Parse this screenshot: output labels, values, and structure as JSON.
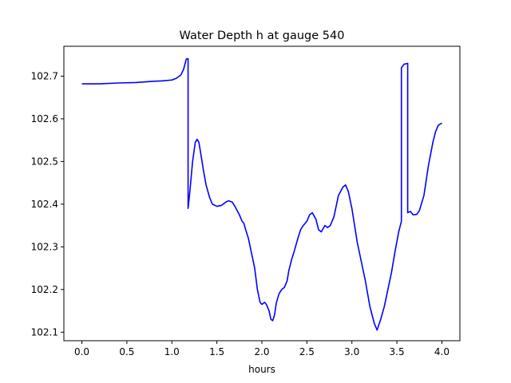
{
  "chart_data": {
    "type": "line",
    "title": "Water Depth h at gauge 540",
    "xlabel": "hours",
    "ylabel": "",
    "xlim": [
      -0.2,
      4.2
    ],
    "ylim": [
      102.08,
      102.77
    ],
    "xticks": [
      0.0,
      0.5,
      1.0,
      1.5,
      2.0,
      2.5,
      3.0,
      3.5,
      4.0
    ],
    "xtick_labels": [
      "0.0",
      "0.5",
      "1.0",
      "1.5",
      "2.0",
      "2.5",
      "3.0",
      "3.5",
      "4.0"
    ],
    "yticks": [
      102.1,
      102.2,
      102.3,
      102.4,
      102.5,
      102.6,
      102.7
    ],
    "ytick_labels": [
      "102.1",
      "102.2",
      "102.3",
      "102.4",
      "102.5",
      "102.6",
      "102.7"
    ],
    "grid": false,
    "line_color": "#0000ff",
    "series": [
      {
        "x": [
          0.0,
          0.2,
          0.4,
          0.6,
          0.8,
          0.9,
          1.0,
          1.05,
          1.1,
          1.13,
          1.16,
          1.18,
          1.18,
          1.2,
          1.23,
          1.26,
          1.28,
          1.3,
          1.32,
          1.35,
          1.38,
          1.42,
          1.45,
          1.5,
          1.55,
          1.6,
          1.63,
          1.67,
          1.7,
          1.75,
          1.78,
          1.8,
          1.82,
          1.85,
          1.88,
          1.92,
          1.95,
          1.98,
          2.0,
          2.03,
          2.05,
          2.08,
          2.1,
          2.12,
          2.14,
          2.16,
          2.19,
          2.22,
          2.25,
          2.28,
          2.3,
          2.33,
          2.36,
          2.4,
          2.43,
          2.46,
          2.5,
          2.53,
          2.56,
          2.6,
          2.63,
          2.66,
          2.7,
          2.73,
          2.76,
          2.8,
          2.85,
          2.9,
          2.93,
          2.96,
          3.0,
          3.03,
          3.06,
          3.1,
          3.15,
          3.2,
          3.25,
          3.28,
          3.32,
          3.36,
          3.4,
          3.44,
          3.48,
          3.52,
          3.55,
          3.55,
          3.58,
          3.62,
          3.62,
          3.65,
          3.68,
          3.72,
          3.75,
          3.8,
          3.85,
          3.9,
          3.93,
          3.96,
          4.0
        ],
        "y": [
          102.682,
          102.682,
          102.684,
          102.685,
          102.688,
          102.689,
          102.691,
          102.695,
          102.703,
          102.716,
          102.74,
          102.741,
          102.39,
          102.43,
          102.5,
          102.545,
          102.552,
          102.545,
          102.52,
          102.48,
          102.445,
          102.415,
          102.4,
          102.395,
          102.397,
          102.405,
          102.408,
          102.405,
          102.395,
          102.375,
          102.36,
          102.355,
          102.34,
          102.32,
          102.29,
          102.25,
          102.2,
          102.17,
          102.165,
          102.17,
          102.165,
          102.15,
          102.13,
          102.127,
          102.14,
          102.168,
          102.19,
          102.2,
          102.205,
          102.22,
          102.245,
          102.27,
          102.29,
          102.32,
          102.34,
          102.35,
          102.36,
          102.375,
          102.38,
          102.365,
          102.34,
          102.335,
          102.35,
          102.345,
          102.35,
          102.37,
          102.42,
          102.44,
          102.445,
          102.43,
          102.39,
          102.35,
          102.31,
          102.27,
          102.22,
          102.16,
          102.12,
          102.105,
          102.13,
          102.16,
          102.2,
          102.24,
          102.29,
          102.335,
          102.36,
          102.72,
          102.728,
          102.73,
          102.38,
          102.383,
          102.375,
          102.376,
          102.385,
          102.42,
          102.49,
          102.545,
          102.57,
          102.585,
          102.59
        ]
      }
    ]
  }
}
